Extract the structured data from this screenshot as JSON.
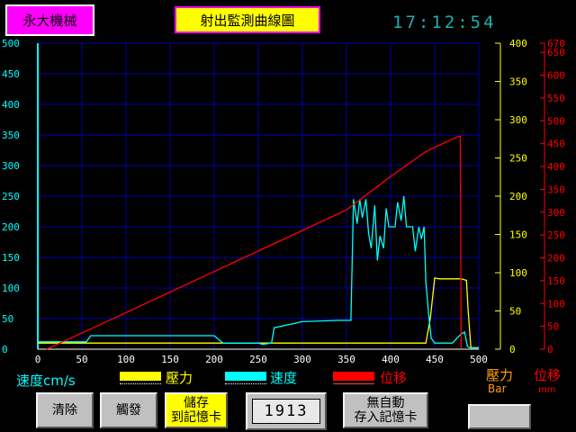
{
  "header": {
    "brand": "永大機械",
    "title": "射出監測曲線圖",
    "clock": "17:12:54"
  },
  "colors": {
    "pressure": "#ffff00",
    "speed": "#00ffff",
    "position": "#ff0000",
    "grid": "#0000aa",
    "axis_x": "#ffffff"
  },
  "chart_data": {
    "type": "line",
    "x_ticks": [
      "0",
      "50",
      "100",
      "150",
      "200",
      "250",
      "300",
      "350",
      "400",
      "450",
      "500"
    ],
    "x_range": [
      0,
      500
    ],
    "left_axis": {
      "label": "速度cm/s",
      "range": [
        0,
        500
      ],
      "ticks": [
        "0",
        "50",
        "100",
        "150",
        "200",
        "250",
        "300",
        "350",
        "400",
        "450",
        "500"
      ]
    },
    "right_axis_pressure": {
      "label": "壓力",
      "unit": "Bar",
      "range": [
        0,
        400
      ],
      "ticks": [
        "0",
        "50",
        "100",
        "150",
        "200",
        "250",
        "300",
        "350",
        "400"
      ]
    },
    "right_axis_position": {
      "label": "位移",
      "unit": "mm",
      "range": [
        0,
        670
      ],
      "ticks": [
        "0",
        "50",
        "100",
        "150",
        "200",
        "250",
        "300",
        "350",
        "400",
        "450",
        "500",
        "550",
        "600",
        "650",
        "670"
      ]
    },
    "grid": true,
    "series": [
      {
        "name": "壓力",
        "axis": "pressure",
        "x": [
          0,
          55,
          60,
          440,
          445,
          450,
          455,
          460,
          470,
          480,
          486,
          488,
          491,
          500
        ],
        "y": [
          8,
          8,
          8,
          8,
          40,
          93,
          92,
          92,
          92,
          92,
          90,
          50,
          2,
          2
        ]
      },
      {
        "name": "速度",
        "axis": "speed",
        "x": [
          0,
          55,
          60,
          120,
          200,
          210,
          250,
          255,
          265,
          268,
          300,
          340,
          355,
          358,
          362,
          365,
          368,
          372,
          375,
          378,
          382,
          385,
          388,
          392,
          395,
          398,
          402,
          405,
          408,
          412,
          415,
          418,
          422,
          425,
          428,
          432,
          435,
          438,
          440,
          443,
          446,
          450,
          470,
          480,
          484,
          487,
          490,
          500
        ],
        "y": [
          12,
          12,
          22,
          22,
          22,
          10,
          10,
          8,
          10,
          35,
          45,
          47,
          47,
          245,
          205,
          245,
          215,
          245,
          190,
          165,
          235,
          145,
          185,
          165,
          230,
          200,
          200,
          200,
          240,
          210,
          250,
          200,
          200,
          200,
          160,
          200,
          180,
          200,
          110,
          60,
          18,
          10,
          10,
          25,
          28,
          5,
          2,
          2
        ]
      },
      {
        "name": "位移",
        "axis": "position",
        "x": [
          10,
          100,
          200,
          300,
          350,
          400,
          440,
          470,
          476,
          479,
          480
        ],
        "y": [
          0,
          80,
          170,
          260,
          305,
          378,
          433,
          460,
          465,
          466,
          2
        ]
      }
    ]
  },
  "legend": {
    "pressure": "壓力",
    "speed": "速度",
    "position": "位移"
  },
  "buttons": {
    "clear": "清除",
    "trigger": "觸發",
    "save_line1": "儲存",
    "save_line2": "到記憶卡",
    "counter": "1913",
    "nosave_line1": "無自動",
    "nosave_line2": "存入記憶卡",
    "blank": ""
  }
}
